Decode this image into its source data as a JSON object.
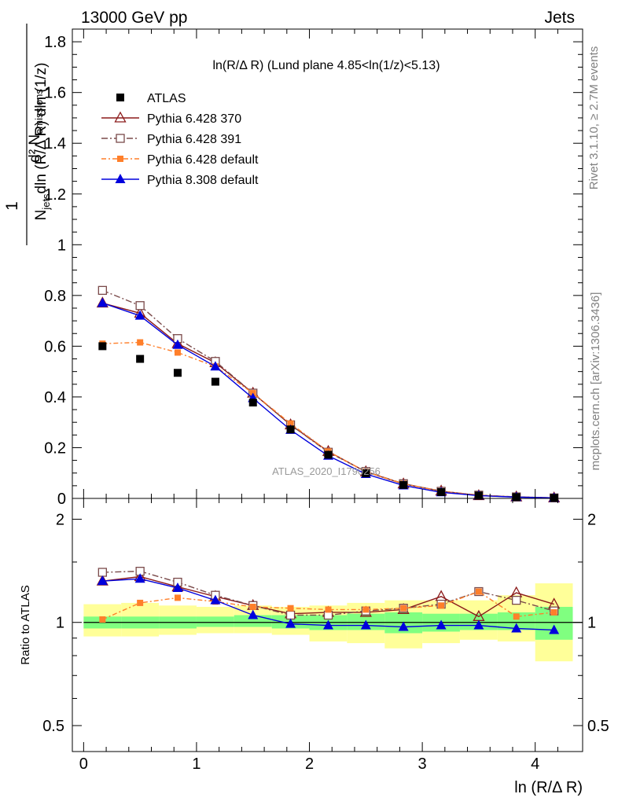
{
  "header": {
    "left": "13000 GeV pp",
    "right": "Jets"
  },
  "side_labels": {
    "rivet": "Rivet 3.1.10, ≥ 2.7M events",
    "mcplots": "mcplots.cern.ch [arXiv:1306.3436]"
  },
  "colors": {
    "ATLAS": "#000000",
    "Pythia 6.428 370": "#8b1a1a",
    "Pythia 6.428 391": "#7a4a4a",
    "Pythia 6.428 default": "#ff7f2a",
    "Pythia 8.308 default": "#0000dd",
    "band_green": "#80ff80",
    "band_yellow": "#ffff99"
  },
  "chart_data": [
    {
      "type": "line",
      "title": "ln(R/Δ R) (Lund plane 4.85<ln(1/z)<5.13)",
      "ylabel": "1/N_jets d²N_emissions / dln(R/Δ R) dln(1/z)",
      "xlabel": "",
      "watermark": "ATLAS_2020_I1790256",
      "xlim": [
        -0.1,
        4.42
      ],
      "ylim": [
        0,
        1.85
      ],
      "yticks": [
        0.2,
        0.4,
        0.6,
        0.8,
        1,
        1.2,
        1.4,
        1.6,
        1.8
      ],
      "ytick_labels": [
        "0.2",
        "0.4",
        "0.6",
        "0.8",
        "1",
        "1.2",
        "1.4",
        "1.6",
        "1.8"
      ],
      "bottom_tick_label": "0",
      "legend_position": "top-left",
      "x": [
        0.167,
        0.5,
        0.833,
        1.167,
        1.5,
        1.833,
        2.167,
        2.5,
        2.833,
        3.167,
        3.5,
        3.833,
        4.167
      ],
      "series": [
        {
          "name": "ATLAS",
          "marker": "square",
          "values": [
            0.6,
            0.55,
            0.495,
            0.46,
            0.378,
            0.272,
            0.172,
            0.099,
            0.053,
            0.025,
            0.011,
            0.005,
            0.002
          ]
        },
        {
          "name": "Pythia 6.428 370",
          "marker": "open-triangle",
          "values": [
            0.77,
            0.73,
            0.61,
            0.535,
            0.415,
            0.29,
            0.185,
            0.105,
            0.057,
            0.029,
            0.011,
            0.006,
            0.002
          ]
        },
        {
          "name": "Pythia 6.428 391",
          "marker": "open-square",
          "values": [
            0.82,
            0.76,
            0.63,
            0.54,
            0.415,
            0.29,
            0.182,
            0.106,
            0.058,
            0.028,
            0.013,
            0.006,
            0.002
          ]
        },
        {
          "name": "Pythia 6.428 default",
          "marker": "filled-square",
          "values": [
            0.61,
            0.615,
            0.575,
            0.52,
            0.415,
            0.295,
            0.185,
            0.105,
            0.058,
            0.028,
            0.013,
            0.005,
            0.002
          ]
        },
        {
          "name": "Pythia 8.308 default",
          "marker": "filled-triangle",
          "values": [
            0.77,
            0.72,
            0.605,
            0.52,
            0.395,
            0.27,
            0.168,
            0.096,
            0.051,
            0.024,
            0.011,
            0.005,
            0.002
          ]
        }
      ]
    },
    {
      "type": "line",
      "title": "",
      "ylabel": "Ratio to ATLAS",
      "xlabel": "ln (R/Δ R)",
      "xlim": [
        -0.1,
        4.42
      ],
      "ylim": [
        0.42,
        2.3
      ],
      "log_y": true,
      "yticks": [
        0.5,
        1,
        2
      ],
      "ytick_labels": [
        "0.5",
        "1",
        "2"
      ],
      "xticks": [
        0,
        1,
        2,
        3,
        4
      ],
      "xtick_labels": [
        "0",
        "1",
        "2",
        "3",
        "4"
      ],
      "x": [
        0.167,
        0.5,
        0.833,
        1.167,
        1.5,
        1.833,
        2.167,
        2.5,
        2.833,
        3.167,
        3.5,
        3.833,
        4.167
      ],
      "bands": {
        "edges": [
          0,
          0.333,
          0.667,
          1.0,
          1.333,
          1.667,
          2.0,
          2.333,
          2.667,
          3.0,
          3.333,
          3.667,
          4.0,
          4.333
        ],
        "green_lo": [
          0.96,
          0.96,
          0.96,
          0.97,
          0.97,
          0.96,
          0.95,
          0.95,
          0.93,
          0.94,
          0.95,
          0.95,
          0.89
        ],
        "green_hi": [
          1.04,
          1.04,
          1.04,
          1.04,
          1.05,
          1.05,
          1.05,
          1.06,
          1.07,
          1.06,
          1.06,
          1.07,
          1.11
        ],
        "yellow_lo": [
          0.91,
          0.91,
          0.92,
          0.93,
          0.93,
          0.92,
          0.88,
          0.87,
          0.84,
          0.87,
          0.89,
          0.88,
          0.77
        ],
        "yellow_hi": [
          1.13,
          1.14,
          1.12,
          1.11,
          1.12,
          1.11,
          1.12,
          1.14,
          1.16,
          1.16,
          1.16,
          1.2,
          1.3
        ]
      },
      "series": [
        {
          "name": "Pythia 6.428 370",
          "values": [
            1.32,
            1.36,
            1.27,
            1.19,
            1.12,
            1.06,
            1.07,
            1.07,
            1.09,
            1.19,
            1.04,
            1.22,
            1.13
          ]
        },
        {
          "name": "Pythia 6.428 391",
          "values": [
            1.4,
            1.41,
            1.31,
            1.2,
            1.12,
            1.05,
            1.05,
            1.08,
            1.1,
            1.13,
            1.23,
            1.16,
            1.08
          ]
        },
        {
          "name": "Pythia 6.428 default",
          "values": [
            1.02,
            1.14,
            1.18,
            1.15,
            1.11,
            1.1,
            1.09,
            1.09,
            1.1,
            1.12,
            1.23,
            1.04,
            1.07
          ]
        },
        {
          "name": "Pythia 8.308 default",
          "values": [
            1.32,
            1.34,
            1.26,
            1.16,
            1.05,
            0.99,
            0.98,
            0.98,
            0.97,
            0.98,
            0.98,
            0.96,
            0.95
          ]
        }
      ]
    }
  ]
}
